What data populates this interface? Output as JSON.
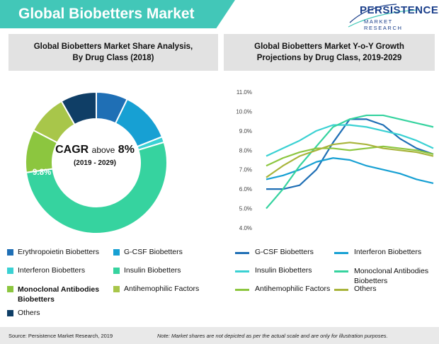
{
  "header": {
    "title": "Global Biobetters Market",
    "logo_main": "PERSISTENCE",
    "logo_sub": "MARKET RESEARCH"
  },
  "left_panel": {
    "title_line1": "Global Biobetters Market Share Analysis,",
    "title_line2": "By Drug Class (2018)"
  },
  "right_panel": {
    "title_line1": "Global Biobetters Market Y-o-Y Growth",
    "title_line2": "Projections by Drug Class, 2019-2029"
  },
  "colors": {
    "banner": "#42c7b8",
    "erythropoietin": "#1f6fb5",
    "gcsf": "#17a0d3",
    "interferon": "#3ad1d3",
    "insulin": "#36d39f",
    "monoclonal": "#8cc63f",
    "antihemophilic": "#a8c64a",
    "others": "#0f3e66"
  },
  "chart_data": [
    {
      "type": "pie",
      "title": "Global Biobetters Market Share Analysis, By Drug Class (2018)",
      "center_text": {
        "cagr_prefix": "CAGR",
        "cagr_mid": "above",
        "cagr_value": "8%",
        "period": "(2019 - 2029)"
      },
      "labels": [
        "Erythropoietin Biobetters",
        "G-CSF Biobetters",
        "Interferon Biobetters",
        "Insulin Biobetters",
        "Monoclonal Antibodies Biobetters",
        "Antihemophilic Factors",
        "Others"
      ],
      "values": [
        7.2,
        11.8,
        1.3,
        52.5,
        9.8,
        9.2,
        8.2
      ],
      "data_labels": {
        "monoclonal": "9.8%"
      },
      "legend": "bottom"
    },
    {
      "type": "line",
      "title": "Global Biobetters Market Y-o-Y Growth Projections by Drug Class, 2019-2029",
      "ylim": [
        4.0,
        11.0
      ],
      "yticks": [
        "11.0%",
        "10.0%",
        "9.0%",
        "8.0%",
        "7.0%",
        "6.0%",
        "5.0%",
        "4.0%"
      ],
      "grid": false,
      "legend": "bottom",
      "x_points": 11,
      "series": [
        {
          "name": "G-CSF Biobetters",
          "color": "#1f6fb5",
          "values": [
            6.0,
            6.0,
            6.2,
            7.0,
            8.4,
            9.6,
            9.6,
            9.3,
            8.6,
            8.1,
            7.8
          ]
        },
        {
          "name": "Interferon Biobetters",
          "color": "#17a0d3",
          "values": [
            6.5,
            6.7,
            7.0,
            7.4,
            7.6,
            7.5,
            7.2,
            7.0,
            6.8,
            6.5,
            6.3
          ]
        },
        {
          "name": "Insulin Biobetters",
          "color": "#3ad1d3",
          "values": [
            7.7,
            8.1,
            8.5,
            9.0,
            9.3,
            9.3,
            9.2,
            9.0,
            8.8,
            8.5,
            8.1
          ]
        },
        {
          "name": "Monoclonal Antibodies Biobetters",
          "color": "#36d39f",
          "values": [
            5.0,
            6.0,
            7.2,
            8.2,
            9.2,
            9.6,
            9.8,
            9.8,
            9.6,
            9.4,
            9.2
          ]
        },
        {
          "name": "Antihemophilic Factors",
          "color": "#8cc63f",
          "values": [
            7.2,
            7.6,
            7.9,
            8.1,
            8.1,
            8.0,
            8.1,
            8.2,
            8.1,
            8.0,
            7.8
          ]
        },
        {
          "name": "Others",
          "color": "#a8b43a",
          "values": [
            6.6,
            7.2,
            7.7,
            8.0,
            8.3,
            8.4,
            8.3,
            8.1,
            8.0,
            7.9,
            7.7
          ]
        }
      ]
    }
  ],
  "left_legend": [
    {
      "label": "Erythropoietin Biobetters",
      "color": "#1f6fb5",
      "bold": false
    },
    {
      "label": "G-CSF Biobetters",
      "color": "#17a0d3",
      "bold": false
    },
    {
      "label": "Interferon Biobetters",
      "color": "#3ad1d3",
      "bold": false
    },
    {
      "label": "Insulin Biobetters",
      "color": "#36d39f",
      "bold": false
    },
    {
      "label": "Monoclonal Antibodies Biobetters",
      "color": "#8cc63f",
      "bold": true
    },
    {
      "label": "Antihemophilic Factors",
      "color": "#a8c64a",
      "bold": false
    },
    {
      "label": "Others",
      "color": "#0f3e66",
      "bold": false
    }
  ],
  "footer": {
    "source": "Source: Persistence Market Research, 2019",
    "note": "Note: Market shares are not depicted as per the actual scale and are only for illustration purposes."
  }
}
